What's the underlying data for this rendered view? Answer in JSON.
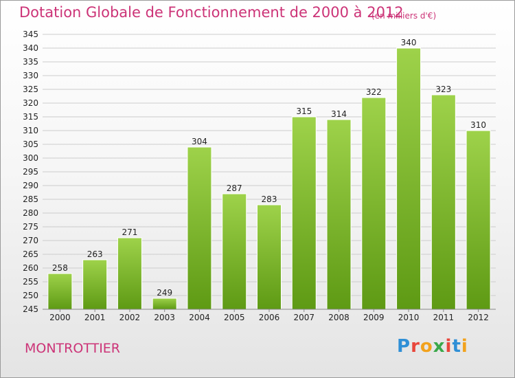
{
  "title": "Dotation Globale de Fonctionnement de 2000 à 2012",
  "subtitle": "(en milliers d'€)",
  "commune": "MONTROTTIER",
  "logo": {
    "text": "Proxiti",
    "colors": [
      "#2f8fd6",
      "#e8463b",
      "#f2a21d",
      "#3aa84a",
      "#e8463b",
      "#2f8fd6",
      "#f2a21d"
    ]
  },
  "colors": {
    "title": "#cc3377",
    "bar_top": "#9ed24a",
    "bar_bottom": "#5e9a14",
    "grid": "#cccccc"
  },
  "chart_data": {
    "type": "bar",
    "title": "Dotation Globale de Fonctionnement de 2000 à 2012",
    "xlabel": "",
    "ylabel": "",
    "categories": [
      "2000",
      "2001",
      "2002",
      "2003",
      "2004",
      "2005",
      "2006",
      "2007",
      "2008",
      "2009",
      "2010",
      "2011",
      "2012"
    ],
    "values": [
      258,
      263,
      271,
      249,
      304,
      287,
      283,
      315,
      314,
      322,
      340,
      323,
      310
    ],
    "ylim": [
      245,
      345
    ],
    "ytick_step": 5,
    "yticks": [
      "245",
      "250",
      "255",
      "260",
      "265",
      "270",
      "275",
      "280",
      "285",
      "290",
      "295",
      "300",
      "305",
      "310",
      "315",
      "320",
      "325",
      "330",
      "335",
      "340",
      "345"
    ],
    "grid": true,
    "data_labels": true
  }
}
